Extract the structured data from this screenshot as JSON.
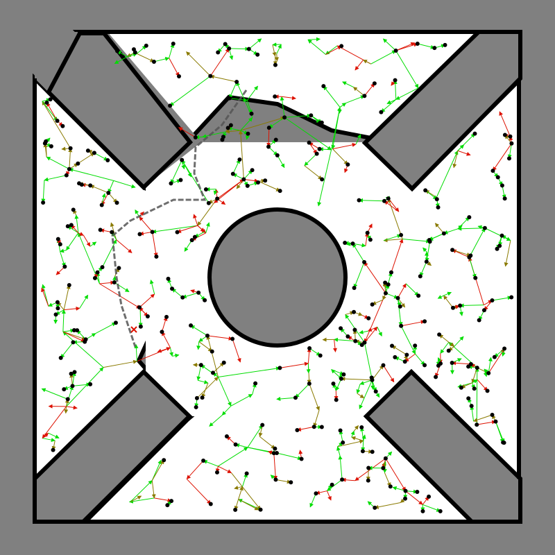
{
  "figure": {
    "kind": "sampling-based motion planning tree (RRT-style) in a 2D environment",
    "colors": {
      "background": "#808080",
      "free_space": "#ffffff",
      "wall_border": "#000000",
      "obstacle_fill": "#808080",
      "edge_green": "#00dd00",
      "edge_olive": "#8a7a00",
      "edge_red": "#dd1100",
      "node": "#000000",
      "path": "#555555",
      "goal_marker": "#dd1100"
    },
    "legend": null,
    "title": ""
  }
}
